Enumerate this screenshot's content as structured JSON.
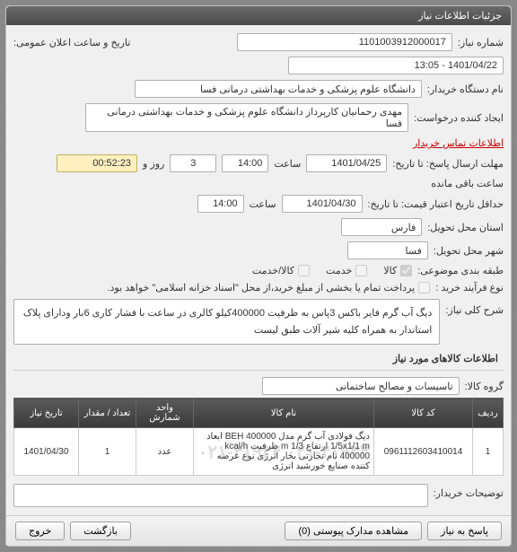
{
  "panel": {
    "title": "جزئیات اطلاعات نیاز"
  },
  "fields": {
    "need_no_label": "شماره نیاز:",
    "need_no": "1101003912000017",
    "announce_label": "تاریخ و ساعت اعلان عمومی:",
    "announce_value": "1401/04/22 - 13:05",
    "buyer_org_label": "نام دستگاه خریدار:",
    "buyer_org": "دانشگاه علوم پزشکی و خدمات بهداشتی درمانی فسا",
    "creator_label": "ایجاد کننده درخواست:",
    "creator": "مهدی رحمانیان کارپرداز دانشگاه علوم پزشکی و خدمات بهداشتی درمانی فسا",
    "contact_link": "اطلاعات تماس خریدار",
    "deadline_label": "مهلت ارسال پاسخ: تا تاریخ:",
    "deadline_date": "1401/04/25",
    "time_label": "ساعت",
    "deadline_time": "14:00",
    "days_label": "روز و",
    "days_value": "3",
    "countdown": "00:52:23",
    "remaining_label": "ساعت باقی مانده",
    "validity_label": "حداقل تاریخ اعتبار قیمت: تا تاریخ:",
    "validity_date": "1401/04/30",
    "validity_time": "14:00",
    "province_label": "استان محل تحویل:",
    "province": "فارس",
    "city_label": "شهر محل تحویل:",
    "city": "فسا",
    "category_label": "طبقه بندی موضوعی:",
    "cat_goods": "کالا",
    "cat_service": "خدمت",
    "cat_both": "کالا/خدمت",
    "process_label": "نوع فرآیند خرید :",
    "process_note": "پرداخت تمام یا بخشی از مبلغ خرید،از محل \"اسناد خزانه اسلامی\" خواهد بود.",
    "desc_label": "شرح کلی نیاز:",
    "desc": "دیگ آب گرم فایر باکس 3پاس به ظرفیت 400000کیلو کالری در ساعت با فشار کاری 6بار ودارای پلاک استاندار به همراه کلیه شیر آلات طبق لیست"
  },
  "goods_section": {
    "title": "اطلاعات کالاهای مورد نیاز",
    "group_label": "گروه کالا:",
    "group_value": "تاسیسات و مصالح ساختمانی"
  },
  "table": {
    "headers": {
      "row": "ردیف",
      "code": "کد کالا",
      "name": "نام کالا",
      "unit": "واحد شمارش",
      "qty": "تعداد / مقدار",
      "date": "تاریخ نیاز"
    },
    "rows": [
      {
        "row": "1",
        "code": "0961112603410014",
        "name": "دیگ فولادی آب گرم مدل BEH 400000 ابعاد 1/5x1/1 m ارتفاع 1/3 m ظرفیت kcal/h 400000 نام تجارتی بخار انرژی نوع عرضه کننده صنایع خورشید انرژی",
        "unit": "عدد",
        "qty": "1",
        "date": "1401/04/30"
      }
    ],
    "watermark": "۰۲۱-۴۱۹۳۴ ۰۲۱-۴۱۹۳۴"
  },
  "buyer_notes_label": "توضیحات خریدار:",
  "footer": {
    "back": "پاسخ به نیاز",
    "attachments": "مشاهده مدارک پیوستی (0)",
    "print": "بازگشت",
    "exit": "خروج"
  }
}
